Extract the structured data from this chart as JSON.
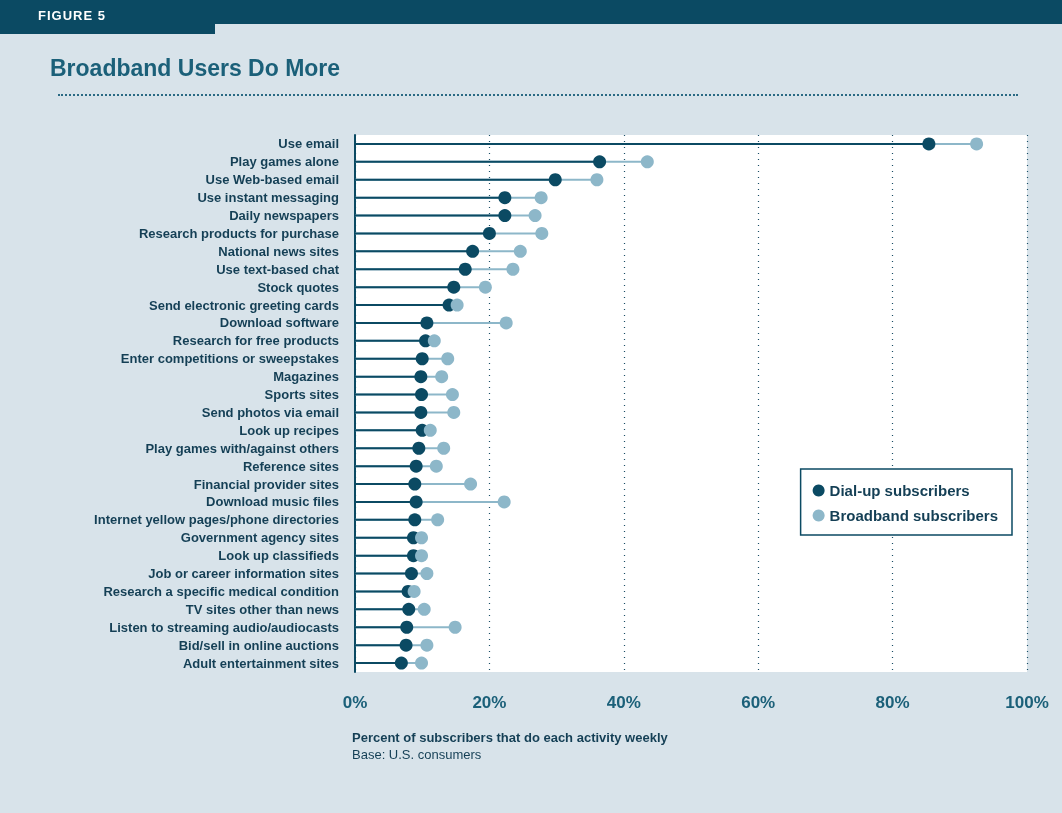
{
  "chart_data": {
    "type": "lollipop",
    "orientation": "horizontal",
    "title": "Broadband Users Do More",
    "xlabel": "Percent of subscribers that do each activity weekly",
    "annotations": [
      "FIGURE 5",
      "Base: U.S. consumers"
    ],
    "categories": [
      "Use email",
      "Play games alone",
      "Use Web-based email",
      "Use instant messaging",
      "Daily newspapers",
      "Research products for purchase",
      "National news sites",
      "Use text-based chat",
      "Stock quotes",
      "Send electronic greeting cards",
      "Download software",
      "Research for free products",
      "Enter competitions or sweepstakes",
      "Magazines",
      "Sports sites",
      "Send photos via email",
      "Look up recipes",
      "Play games with/against others",
      "Reference sites",
      "Financial provider sites",
      "Download music files",
      "Internet yellow pages/phone directories",
      "Government agency sites",
      "Look up classifieds",
      "Job or career information sites",
      "Research a specific medical condition",
      "TV sites other than news",
      "Listen to streaming audio/audiocasts",
      "Bid/sell in online auctions",
      "Adult entertainment sites"
    ],
    "series": [
      {
        "name": "Dial-up subscribers",
        "color": "#0b4a63",
        "values": [
          85.4,
          36.4,
          29.8,
          22.3,
          22.3,
          20.0,
          17.5,
          16.4,
          14.7,
          14.0,
          10.7,
          10.5,
          10.0,
          9.8,
          9.9,
          9.8,
          10.0,
          9.5,
          9.1,
          8.9,
          9.1,
          8.9,
          8.7,
          8.7,
          8.4,
          7.9,
          8.0,
          7.7,
          7.6,
          6.9
        ]
      },
      {
        "name": "Broadband subscribers",
        "color": "#8db7c9",
        "values": [
          92.5,
          43.5,
          36.0,
          27.7,
          26.8,
          27.8,
          24.6,
          23.5,
          19.4,
          15.2,
          22.5,
          11.8,
          13.8,
          12.9,
          14.5,
          14.7,
          11.2,
          13.2,
          12.1,
          17.2,
          22.2,
          12.3,
          9.9,
          9.9,
          10.7,
          8.8,
          10.3,
          14.9,
          10.7,
          9.9
        ]
      }
    ],
    "xlim": [
      0,
      100
    ],
    "xticks": [
      {
        "value": 0,
        "label": "0%"
      },
      {
        "value": 20,
        "label": "20%"
      },
      {
        "value": 40,
        "label": "40%"
      },
      {
        "value": 60,
        "label": "60%"
      },
      {
        "value": 80,
        "label": "80%"
      },
      {
        "value": 100,
        "label": "100%"
      }
    ],
    "grid": "x",
    "legend": "bottom right",
    "marker": "circle"
  }
}
